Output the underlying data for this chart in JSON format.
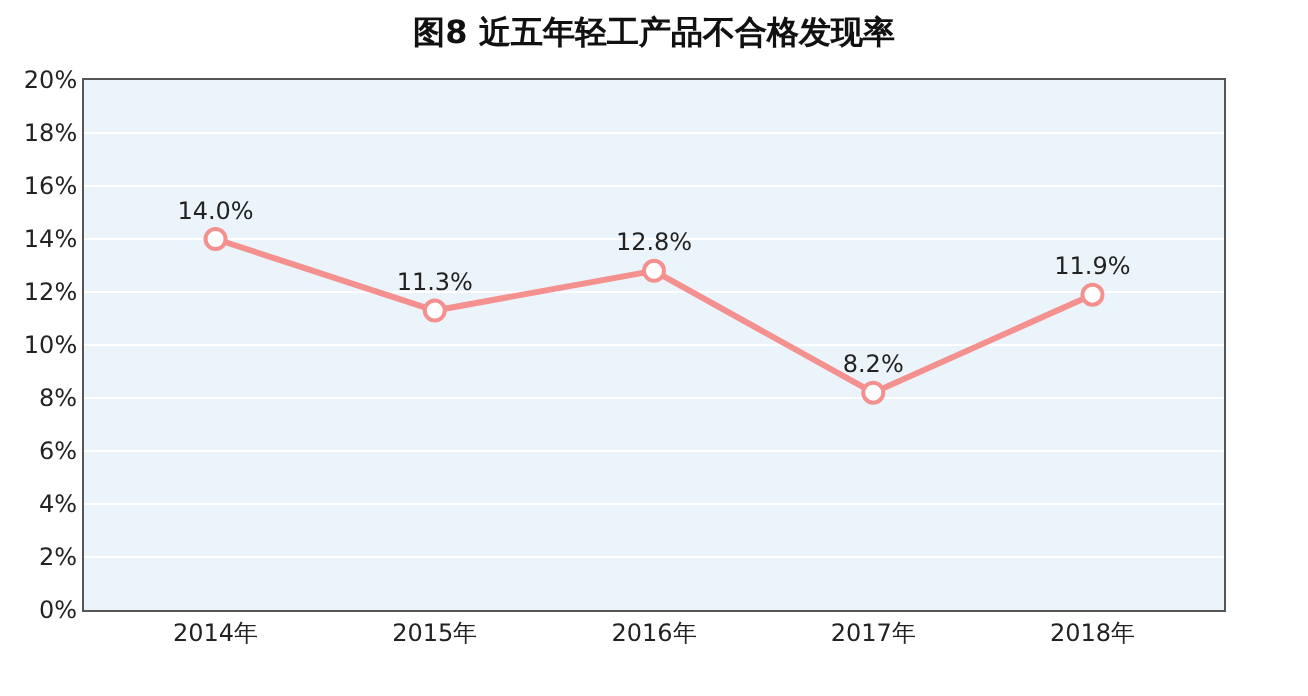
{
  "chart_data": {
    "type": "line",
    "title": "图8 近五年轻工产品不合格发现率",
    "categories": [
      "2014年",
      "2015年",
      "2016年",
      "2017年",
      "2018年"
    ],
    "series": [
      {
        "color": "#f4908e",
        "values": [
          14.0,
          11.3,
          12.8,
          8.2,
          11.9
        ],
        "value_labels": [
          "14.0%",
          "11.3%",
          "12.8%",
          "8.2%",
          "11.9%"
        ]
      }
    ],
    "ylim": [
      0,
      20
    ],
    "yticks": [
      {
        "value": 0,
        "label": "0%"
      },
      {
        "value": 2,
        "label": "2%"
      },
      {
        "value": 4,
        "label": "4%"
      },
      {
        "value": 6,
        "label": "6%"
      },
      {
        "value": 8,
        "label": "8%"
      },
      {
        "value": 10,
        "label": "10%"
      },
      {
        "value": 12,
        "label": "12%"
      },
      {
        "value": 14,
        "label": "14%"
      },
      {
        "value": 16,
        "label": "16%"
      },
      {
        "value": 18,
        "label": "18%"
      },
      {
        "value": 20,
        "label": "20%"
      }
    ],
    "grid": "y",
    "marker": "circle",
    "line_style": "solid",
    "legend": false
  }
}
